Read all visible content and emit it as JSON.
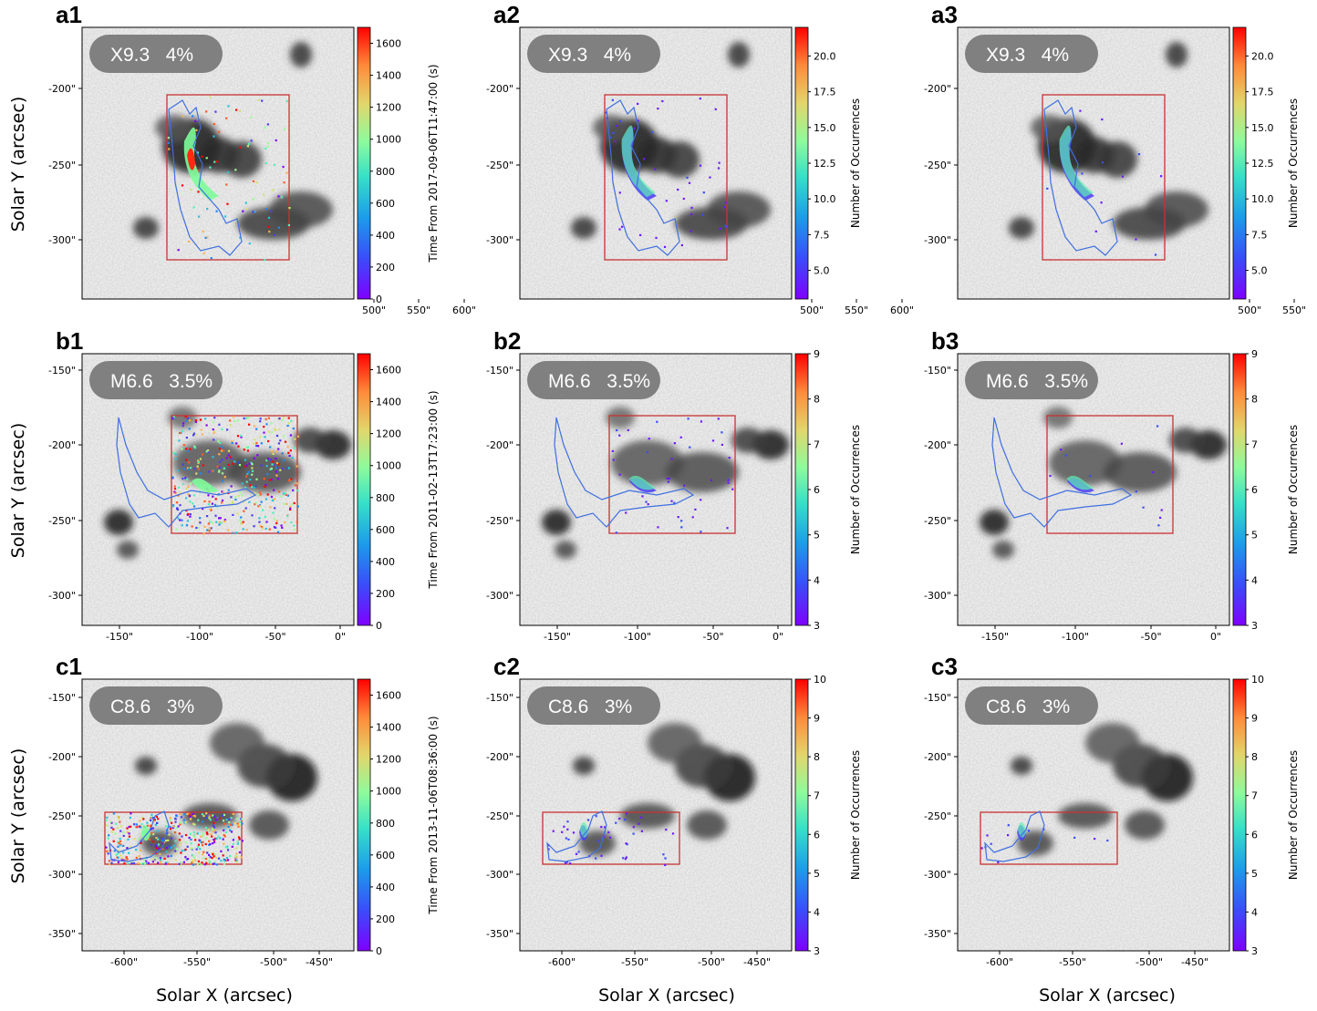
{
  "figure": {
    "x_axis_label": "Solar X (arcsec)",
    "y_axis_label": "Solar Y (arcsec)",
    "colors": {
      "box": "#c83232",
      "contour": "#3f6fe0",
      "badge": "#7a7a7a",
      "frame": "#000000"
    }
  },
  "chart_data": [
    {
      "type": "heatmap",
      "label": "a1",
      "badge": {
        "class": "X9.3",
        "percent": "4%"
      },
      "xticks": [
        "500\"",
        "550\"",
        "600\""
      ],
      "yticks": [
        "-200\"",
        "-250\"",
        "-300\""
      ],
      "colorbar": {
        "label": "Time From 2017-09-06T11:47:00 (s)",
        "ticks": [
          "0",
          "200",
          "400",
          "600",
          "800",
          "1000",
          "1200",
          "1400",
          "1600"
        ],
        "range": [
          0,
          1700
        ]
      }
    },
    {
      "type": "heatmap",
      "label": "a2",
      "badge": {
        "class": "X9.3",
        "percent": "4%"
      },
      "xticks": [
        "500\"",
        "550\"",
        "600\""
      ],
      "yticks": [
        "-200\"",
        "-250\"",
        "-300\""
      ],
      "colorbar": {
        "label": "Number of Occurrences",
        "ticks": [
          "5.0",
          "7.5",
          "10.0",
          "12.5",
          "15.0",
          "17.5",
          "20.0"
        ],
        "range": [
          3,
          22
        ]
      }
    },
    {
      "type": "heatmap",
      "label": "a3",
      "badge": {
        "class": "X9.3",
        "percent": "4%"
      },
      "xticks": [
        "500\"",
        "550\"",
        "600\""
      ],
      "yticks": [
        "-200\"",
        "-250\"",
        "-300\""
      ],
      "colorbar": {
        "label": "Number of Occurrences",
        "ticks": [
          "5.0",
          "7.5",
          "10.0",
          "12.5",
          "15.0",
          "17.5",
          "20.0"
        ],
        "range": [
          3,
          22
        ]
      }
    },
    {
      "type": "heatmap",
      "label": "b1",
      "badge": {
        "class": "M6.6",
        "percent": "3.5%"
      },
      "xticks": [
        "-150\"",
        "-100\"",
        "-50\"",
        "0\""
      ],
      "yticks": [
        "-150\"",
        "-200\"",
        "-250\"",
        "-300\""
      ],
      "colorbar": {
        "label": "Time From 2011-02-13T17:23:00 (s)",
        "ticks": [
          "0",
          "200",
          "400",
          "600",
          "800",
          "1000",
          "1200",
          "1400",
          "1600"
        ],
        "range": [
          0,
          1700
        ]
      }
    },
    {
      "type": "heatmap",
      "label": "b2",
      "badge": {
        "class": "M6.6",
        "percent": "3.5%"
      },
      "xticks": [
        "-150\"",
        "-100\"",
        "-50\"",
        "0\""
      ],
      "yticks": [
        "-150\"",
        "-200\"",
        "-250\"",
        "-300\""
      ],
      "colorbar": {
        "label": "Number of Occurrences",
        "ticks": [
          "3",
          "4",
          "5",
          "6",
          "7",
          "8",
          "9"
        ],
        "range": [
          3,
          9
        ]
      }
    },
    {
      "type": "heatmap",
      "label": "b3",
      "badge": {
        "class": "M6.6",
        "percent": "3.5%"
      },
      "xticks": [
        "-150\"",
        "-100\"",
        "-50\"",
        "0\""
      ],
      "yticks": [
        "-150\"",
        "-200\"",
        "-250\"",
        "-300\""
      ],
      "colorbar": {
        "label": "Number of Occurrences",
        "ticks": [
          "3",
          "4",
          "5",
          "6",
          "7",
          "8",
          "9"
        ],
        "range": [
          3,
          9
        ]
      }
    },
    {
      "type": "heatmap",
      "label": "c1",
      "badge": {
        "class": "C8.6",
        "percent": "3%"
      },
      "xticks": [
        "-600\"",
        "-550\"",
        "-500\"",
        "-450\""
      ],
      "yticks": [
        "-150\"",
        "-200\"",
        "-250\"",
        "-300\"",
        "-350\""
      ],
      "colorbar": {
        "label": "Time From 2013-11-06T08:36:00 (s)",
        "ticks": [
          "0",
          "200",
          "400",
          "600",
          "800",
          "1000",
          "1200",
          "1400",
          "1600"
        ],
        "range": [
          0,
          1700
        ]
      }
    },
    {
      "type": "heatmap",
      "label": "c2",
      "badge": {
        "class": "C8.6",
        "percent": "3%"
      },
      "xticks": [
        "-600\"",
        "-550\"",
        "-500\"",
        "-450\""
      ],
      "yticks": [
        "-150\"",
        "-200\"",
        "-250\"",
        "-300\"",
        "-350\""
      ],
      "colorbar": {
        "label": "Number of Occurrences",
        "ticks": [
          "3",
          "4",
          "5",
          "6",
          "7",
          "8",
          "9",
          "10"
        ],
        "range": [
          3,
          10
        ]
      }
    },
    {
      "type": "heatmap",
      "label": "c3",
      "badge": {
        "class": "C8.6",
        "percent": "3%"
      },
      "xticks": [
        "-600\"",
        "-550\"",
        "-500\"",
        "-450\""
      ],
      "yticks": [
        "-150\"",
        "-200\"",
        "-250\"",
        "-300\"",
        "-350\""
      ],
      "colorbar": {
        "label": "Number of Occurrences",
        "ticks": [
          "3",
          "4",
          "5",
          "6",
          "7",
          "8",
          "9",
          "10"
        ],
        "range": [
          3,
          10
        ]
      }
    }
  ]
}
